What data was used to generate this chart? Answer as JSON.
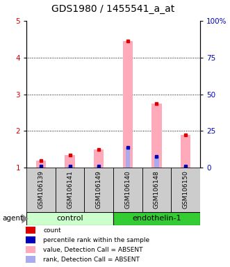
{
  "title": "GDS1980 / 1455541_a_at",
  "samples": [
    "GSM106139",
    "GSM106141",
    "GSM106149",
    "GSM106140",
    "GSM106148",
    "GSM106150"
  ],
  "groups": [
    {
      "name": "control",
      "indices": [
        0,
        1,
        2
      ],
      "color": "#ccffcc"
    },
    {
      "name": "endothelin-1",
      "indices": [
        3,
        4,
        5
      ],
      "color": "#33cc33"
    }
  ],
  "pink_values": [
    1.2,
    1.35,
    1.5,
    4.45,
    2.75,
    1.9
  ],
  "blue_values": [
    1.05,
    1.05,
    1.05,
    1.55,
    1.3,
    1.05
  ],
  "ylim": [
    1,
    5
  ],
  "y2lim": [
    0,
    100
  ],
  "yticks": [
    1,
    2,
    3,
    4,
    5
  ],
  "y2ticks": [
    0,
    25,
    50,
    75,
    100
  ],
  "pink_color": "#ffaabb",
  "blue_color": "#aaaaee",
  "red_color": "#dd0000",
  "dark_blue_color": "#0000bb",
  "legend_items": [
    {
      "label": "count",
      "color": "#dd0000"
    },
    {
      "label": "percentile rank within the sample",
      "color": "#0000bb"
    },
    {
      "label": "value, Detection Call = ABSENT",
      "color": "#ffaabb"
    },
    {
      "label": "rank, Detection Call = ABSENT",
      "color": "#aaaaee"
    }
  ],
  "sample_bg_color": "#cccccc",
  "title_fontsize": 10,
  "tick_fontsize": 7.5,
  "legend_fontsize": 6.5,
  "sample_fontsize": 6.5,
  "group_fontsize": 8
}
